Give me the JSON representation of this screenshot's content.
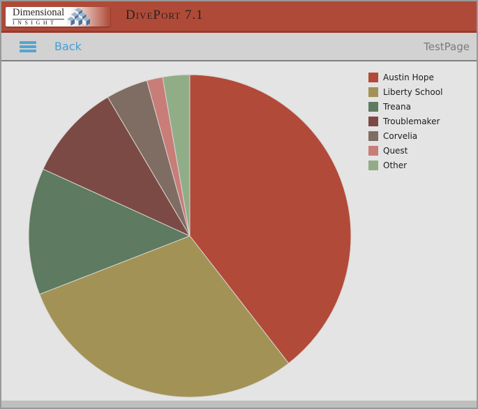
{
  "header": {
    "logo": {
      "brand_line1": "Dimensional",
      "brand_line2": "INSIGHT"
    },
    "app_title": "DivePort 7.1",
    "bg_color": "#b04a38",
    "stripe_color": "#993a2b"
  },
  "toolbar": {
    "back_label": "Back",
    "page_name": "TestPage",
    "link_color": "#41a0d6"
  },
  "chart_data": {
    "type": "pie",
    "labels": [
      "Austin Hope",
      "Liberty School",
      "Treana",
      "Troublemaker",
      "Corvelia",
      "Quest",
      "Other"
    ],
    "values": [
      39.5,
      29.6,
      12.7,
      9.7,
      4.2,
      1.6,
      2.7
    ],
    "unit": "percent",
    "colors": [
      "#b24a39",
      "#a29255",
      "#5e7a60",
      "#7c4a44",
      "#7f6c62",
      "#c87d78",
      "#90ad88"
    ],
    "start_angle_deg": 0,
    "direction": "clockwise",
    "legend_position": "top-right",
    "slice_stroke": "#d8d6d2"
  }
}
